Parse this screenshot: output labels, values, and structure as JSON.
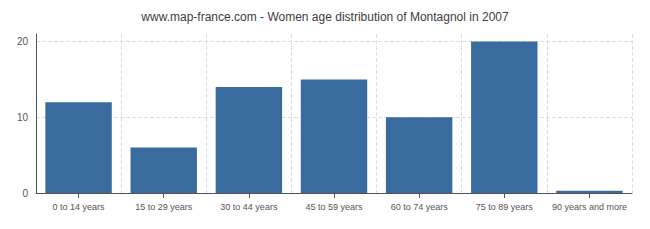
{
  "chart_data": {
    "type": "bar",
    "title": "www.map-france.com - Women age distribution of Montagnol in 2007",
    "categories": [
      "0 to 14 years",
      "15 to 29 years",
      "30 to 44 years",
      "45 to 59 years",
      "60 to 74 years",
      "75 to 89 years",
      "90 years and more"
    ],
    "values": [
      12,
      6,
      14,
      15,
      10,
      20,
      0.3
    ],
    "color": "#3A6B9F",
    "ylim": [
      0,
      21
    ],
    "yticks": [
      0,
      10,
      20
    ],
    "grid": true
  }
}
